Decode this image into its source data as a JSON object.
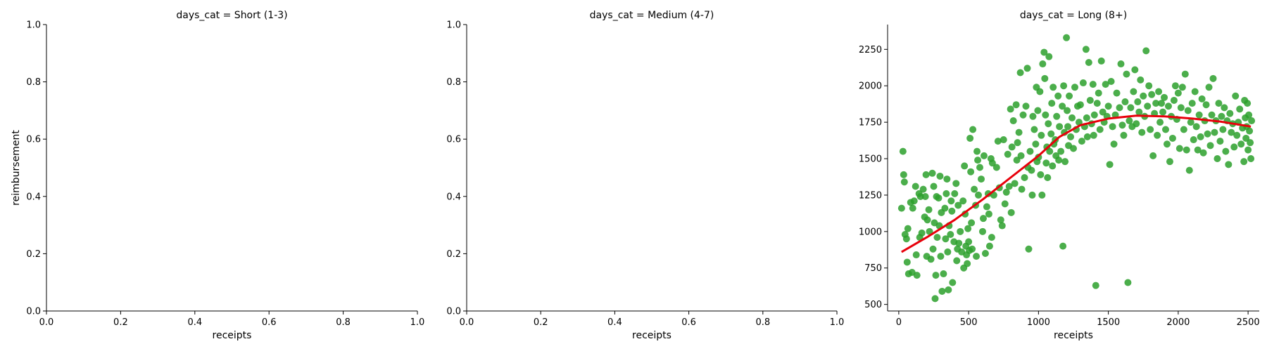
{
  "chart_data": [
    {
      "type": "scatter",
      "title": "days_cat = Short (1-3)",
      "xlabel": "receipts",
      "ylabel": "reimbursement",
      "xlim": [
        0,
        1
      ],
      "ylim": [
        0,
        1
      ],
      "xticks": [
        "0.0",
        "0.2",
        "0.4",
        "0.6",
        "0.8",
        "1.0"
      ],
      "yticks": [
        "0.0",
        "0.2",
        "0.4",
        "0.6",
        "0.8",
        "1.0"
      ],
      "points": [],
      "trend": []
    },
    {
      "type": "scatter",
      "title": "days_cat = Medium (4-7)",
      "xlabel": "receipts",
      "ylabel": "",
      "xlim": [
        0,
        1
      ],
      "ylim": [
        0,
        1
      ],
      "xticks": [
        "0.0",
        "0.2",
        "0.4",
        "0.6",
        "0.8",
        "1.0"
      ],
      "yticks": [
        "0.0",
        "0.2",
        "0.4",
        "0.6",
        "0.8",
        "1.0"
      ],
      "points": [],
      "trend": []
    },
    {
      "type": "scatter",
      "title": "days_cat = Long (8+)",
      "xlabel": "receipts",
      "ylabel": "",
      "xlim": [
        -80,
        2580
      ],
      "ylim": [
        455,
        2420
      ],
      "xticks": [
        "0",
        "500",
        "1000",
        "1500",
        "2000",
        "2500"
      ],
      "yticks": [
        "500",
        "750",
        "1000",
        "1250",
        "1500",
        "1750",
        "2000",
        "2250"
      ],
      "colors": {
        "points": "#2ca02c",
        "trend": "#e8000b"
      },
      "points": [
        [
          20,
          1160
        ],
        [
          30,
          1550
        ],
        [
          35,
          1390
        ],
        [
          40,
          1340
        ],
        [
          45,
          980
        ],
        [
          55,
          950
        ],
        [
          60,
          790
        ],
        [
          65,
          1020
        ],
        [
          70,
          710
        ],
        [
          85,
          1200
        ],
        [
          95,
          720
        ],
        [
          100,
          1160
        ],
        [
          110,
          1210
        ],
        [
          120,
          1310
        ],
        [
          125,
          840
        ],
        [
          130,
          700
        ],
        [
          145,
          1260
        ],
        [
          150,
          960
        ],
        [
          155,
          1240
        ],
        [
          165,
          990
        ],
        [
          175,
          1290
        ],
        [
          185,
          1100
        ],
        [
          190,
          1240
        ],
        [
          195,
          1390
        ],
        [
          200,
          830
        ],
        [
          205,
          1080
        ],
        [
          215,
          1150
        ],
        [
          220,
          1000
        ],
        [
          230,
          810
        ],
        [
          240,
          1400
        ],
        [
          245,
          880
        ],
        [
          250,
          1310
        ],
        [
          255,
          1060
        ],
        [
          260,
          540
        ],
        [
          265,
          700
        ],
        [
          270,
          1240
        ],
        [
          275,
          960
        ],
        [
          285,
          1230
        ],
        [
          290,
          1040
        ],
        [
          295,
          1380
        ],
        [
          300,
          830
        ],
        [
          305,
          1130
        ],
        [
          310,
          590
        ],
        [
          320,
          710
        ],
        [
          330,
          1160
        ],
        [
          335,
          950
        ],
        [
          340,
          1260
        ],
        [
          345,
          1360
        ],
        [
          350,
          860
        ],
        [
          355,
          600
        ],
        [
          360,
          1040
        ],
        [
          370,
          980
        ],
        [
          375,
          1210
        ],
        [
          380,
          1140
        ],
        [
          385,
          650
        ],
        [
          395,
          930
        ],
        [
          400,
          1260
        ],
        [
          410,
          1330
        ],
        [
          415,
          800
        ],
        [
          420,
          880
        ],
        [
          425,
          1180
        ],
        [
          430,
          920
        ],
        [
          440,
          1000
        ],
        [
          450,
          860
        ],
        [
          460,
          1210
        ],
        [
          465,
          750
        ],
        [
          470,
          1450
        ],
        [
          475,
          1120
        ],
        [
          480,
          900
        ],
        [
          485,
          840
        ],
        [
          490,
          780
        ],
        [
          495,
          1020
        ],
        [
          500,
          930
        ],
        [
          505,
          870
        ],
        [
          510,
          1640
        ],
        [
          515,
          1410
        ],
        [
          520,
          1060
        ],
        [
          525,
          880
        ],
        [
          530,
          1700
        ],
        [
          540,
          1290
        ],
        [
          550,
          1180
        ],
        [
          555,
          830
        ],
        [
          560,
          1550
        ],
        [
          565,
          1490
        ],
        [
          570,
          1250
        ],
        [
          580,
          1440
        ],
        [
          590,
          1360
        ],
        [
          600,
          1000
        ],
        [
          605,
          1090
        ],
        [
          610,
          1520
        ],
        [
          620,
          850
        ],
        [
          630,
          1170
        ],
        [
          640,
          1260
        ],
        [
          645,
          1120
        ],
        [
          650,
          900
        ],
        [
          660,
          1500
        ],
        [
          665,
          960
        ],
        [
          670,
          1470
        ],
        [
          680,
          1250
        ],
        [
          700,
          1440
        ],
        [
          710,
          1620
        ],
        [
          720,
          1300
        ],
        [
          730,
          1080
        ],
        [
          740,
          1040
        ],
        [
          750,
          1630
        ],
        [
          760,
          1190
        ],
        [
          770,
          1270
        ],
        [
          780,
          1530
        ],
        [
          790,
          1310
        ],
        [
          800,
          1840
        ],
        [
          805,
          1130
        ],
        [
          810,
          1580
        ],
        [
          820,
          1760
        ],
        [
          830,
          1330
        ],
        [
          840,
          1870
        ],
        [
          845,
          1490
        ],
        [
          850,
          1610
        ],
        [
          860,
          1680
        ],
        [
          870,
          2090
        ],
        [
          875,
          1520
        ],
        [
          880,
          1290
        ],
        [
          890,
          1800
        ],
        [
          900,
          1370
        ],
        [
          910,
          1860
        ],
        [
          920,
          2120
        ],
        [
          925,
          1440
        ],
        [
          930,
          880
        ],
        [
          940,
          1550
        ],
        [
          950,
          1420
        ],
        [
          955,
          1250
        ],
        [
          960,
          1790
        ],
        [
          970,
          1700
        ],
        [
          980,
          1600
        ],
        [
          985,
          1990
        ],
        [
          990,
          1480
        ],
        [
          995,
          1830
        ],
        [
          1000,
          1510
        ],
        [
          1010,
          1960
        ],
        [
          1015,
          1390
        ],
        [
          1020,
          1660
        ],
        [
          1025,
          1250
        ],
        [
          1030,
          2150
        ],
        [
          1040,
          2230
        ],
        [
          1045,
          2050
        ],
        [
          1050,
          1800
        ],
        [
          1055,
          1470
        ],
        [
          1060,
          1580
        ],
        [
          1065,
          1370
        ],
        [
          1070,
          1740
        ],
        [
          1075,
          2200
        ],
        [
          1080,
          1550
        ],
        [
          1090,
          1670
        ],
        [
          1095,
          1880
        ],
        [
          1100,
          1450
        ],
        [
          1105,
          1990
        ],
        [
          1110,
          1600
        ],
        [
          1120,
          1630
        ],
        [
          1125,
          1520
        ],
        [
          1130,
          1790
        ],
        [
          1140,
          1930
        ],
        [
          1145,
          1490
        ],
        [
          1150,
          1720
        ],
        [
          1160,
          1550
        ],
        [
          1170,
          1860
        ],
        [
          1175,
          900
        ],
        [
          1180,
          2000
        ],
        [
          1185,
          1680
        ],
        [
          1190,
          1480
        ],
        [
          1200,
          2330
        ],
        [
          1205,
          1830
        ],
        [
          1210,
          1720
        ],
        [
          1215,
          1590
        ],
        [
          1220,
          1930
        ],
        [
          1230,
          1650
        ],
        [
          1240,
          1780
        ],
        [
          1250,
          1570
        ],
        [
          1260,
          1990
        ],
        [
          1270,
          1700
        ],
        [
          1280,
          1860
        ],
        [
          1290,
          1750
        ],
        [
          1300,
          1870
        ],
        [
          1310,
          1620
        ],
        [
          1320,
          2020
        ],
        [
          1330,
          1720
        ],
        [
          1340,
          2250
        ],
        [
          1345,
          1780
        ],
        [
          1350,
          1650
        ],
        [
          1360,
          2160
        ],
        [
          1370,
          1900
        ],
        [
          1380,
          1740
        ],
        [
          1390,
          2010
        ],
        [
          1395,
          1660
        ],
        [
          1400,
          1800
        ],
        [
          1410,
          630
        ],
        [
          1420,
          1880
        ],
        [
          1430,
          1950
        ],
        [
          1440,
          1700
        ],
        [
          1450,
          2170
        ],
        [
          1460,
          1820
        ],
        [
          1470,
          1750
        ],
        [
          1480,
          2010
        ],
        [
          1490,
          1790
        ],
        [
          1500,
          1860
        ],
        [
          1510,
          1460
        ],
        [
          1520,
          2030
        ],
        [
          1530,
          1720
        ],
        [
          1540,
          1600
        ],
        [
          1550,
          1800
        ],
        [
          1560,
          1950
        ],
        [
          1580,
          1850
        ],
        [
          1590,
          2150
        ],
        [
          1600,
          1730
        ],
        [
          1610,
          1660
        ],
        [
          1620,
          1890
        ],
        [
          1630,
          2080
        ],
        [
          1640,
          650
        ],
        [
          1650,
          1760
        ],
        [
          1660,
          1850
        ],
        [
          1670,
          1720
        ],
        [
          1680,
          1960
        ],
        [
          1690,
          2110
        ],
        [
          1700,
          1740
        ],
        [
          1710,
          1890
        ],
        [
          1720,
          1820
        ],
        [
          1730,
          2040
        ],
        [
          1740,
          1680
        ],
        [
          1750,
          1930
        ],
        [
          1760,
          1790
        ],
        [
          1770,
          2240
        ],
        [
          1780,
          1860
        ],
        [
          1790,
          2000
        ],
        [
          1800,
          1700
        ],
        [
          1810,
          1940
        ],
        [
          1820,
          1520
        ],
        [
          1830,
          1810
        ],
        [
          1840,
          1880
        ],
        [
          1850,
          1660
        ],
        [
          1860,
          1960
        ],
        [
          1870,
          1750
        ],
        [
          1880,
          1880
        ],
        [
          1890,
          1820
        ],
        [
          1900,
          1920
        ],
        [
          1910,
          1700
        ],
        [
          1920,
          1600
        ],
        [
          1930,
          1860
        ],
        [
          1940,
          1480
        ],
        [
          1950,
          1790
        ],
        [
          1960,
          1640
        ],
        [
          1970,
          1900
        ],
        [
          1980,
          2000
        ],
        [
          1990,
          1770
        ],
        [
          2000,
          1950
        ],
        [
          2010,
          1570
        ],
        [
          2020,
          1850
        ],
        [
          2030,
          1990
        ],
        [
          2040,
          1700
        ],
        [
          2050,
          2080
        ],
        [
          2060,
          1560
        ],
        [
          2070,
          1830
        ],
        [
          2080,
          1420
        ],
        [
          2090,
          1750
        ],
        [
          2100,
          1880
        ],
        [
          2110,
          1630
        ],
        [
          2120,
          1960
        ],
        [
          2130,
          1720
        ],
        [
          2140,
          1560
        ],
        [
          2150,
          1800
        ],
        [
          2160,
          1650
        ],
        [
          2170,
          1910
        ],
        [
          2180,
          1540
        ],
        [
          2190,
          1760
        ],
        [
          2200,
          1870
        ],
        [
          2210,
          1670
        ],
        [
          2220,
          1990
        ],
        [
          2230,
          1590
        ],
        [
          2240,
          1800
        ],
        [
          2250,
          2050
        ],
        [
          2260,
          1680
        ],
        [
          2270,
          1760
        ],
        [
          2280,
          1500
        ],
        [
          2290,
          1880
        ],
        [
          2300,
          1620
        ],
        [
          2310,
          1790
        ],
        [
          2320,
          1700
        ],
        [
          2330,
          1850
        ],
        [
          2340,
          1550
        ],
        [
          2350,
          1760
        ],
        [
          2360,
          1460
        ],
        [
          2370,
          1810
        ],
        [
          2380,
          1680
        ],
        [
          2390,
          1740
        ],
        [
          2400,
          1580
        ],
        [
          2410,
          1930
        ],
        [
          2420,
          1660
        ],
        [
          2430,
          1750
        ],
        [
          2440,
          1840
        ],
        [
          2450,
          1600
        ],
        [
          2460,
          1710
        ],
        [
          2470,
          1480
        ],
        [
          2475,
          1900
        ],
        [
          2480,
          1780
        ],
        [
          2485,
          1640
        ],
        [
          2490,
          1720
        ],
        [
          2495,
          1880
        ],
        [
          2500,
          1560
        ],
        [
          2505,
          1800
        ],
        [
          2510,
          1690
        ],
        [
          2515,
          1610
        ],
        [
          2520,
          1500
        ],
        [
          2525,
          1760
        ]
      ],
      "trend": [
        [
          20,
          860
        ],
        [
          200,
          960
        ],
        [
          400,
          1080
        ],
        [
          600,
          1220
        ],
        [
          800,
          1370
        ],
        [
          1000,
          1520
        ],
        [
          1150,
          1650
        ],
        [
          1300,
          1730
        ],
        [
          1500,
          1775
        ],
        [
          1700,
          1795
        ],
        [
          1900,
          1790
        ],
        [
          2100,
          1775
        ],
        [
          2300,
          1755
        ],
        [
          2520,
          1720
        ]
      ]
    }
  ]
}
